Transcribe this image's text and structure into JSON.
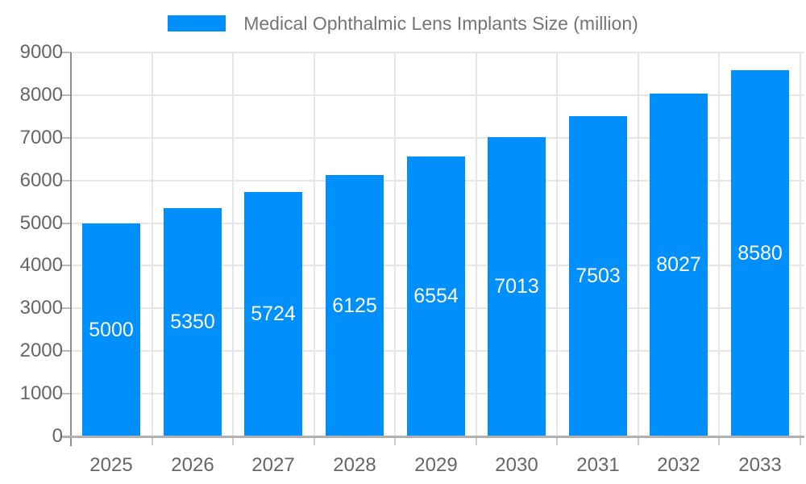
{
  "chart_data": {
    "type": "bar",
    "title": "Medical Ophthalmic Lens Implants Size (million)",
    "categories": [
      "2025",
      "2026",
      "2027",
      "2028",
      "2029",
      "2030",
      "2031",
      "2032",
      "2033"
    ],
    "values": [
      5000,
      5350,
      5724,
      6125,
      6554,
      7013,
      7503,
      8027,
      8580
    ],
    "series": [
      {
        "name": "Medical Ophthalmic Lens Implants Size (million)",
        "values": [
          5000,
          5350,
          5724,
          6125,
          6554,
          7013,
          7503,
          8027,
          8580
        ]
      }
    ],
    "xlabel": "",
    "ylabel": "",
    "ylim": [
      0,
      9000
    ],
    "yticks": [
      0,
      1000,
      2000,
      3000,
      4000,
      5000,
      6000,
      7000,
      8000,
      9000
    ],
    "grid": true,
    "legend_position": "top",
    "value_label_position": "inside-center",
    "colors": {
      "bar": "#008FFB",
      "value_label": "#ffffff",
      "axis_text": "#666666",
      "legend_text": "#757575",
      "gridline": "#e6e6e6",
      "y_axis_line": "#8c8c8c",
      "baseline": "#b0b0b0",
      "tick_y": "#b9b9b9",
      "tick_x": "#cccccc",
      "background": "#ffffff"
    }
  }
}
